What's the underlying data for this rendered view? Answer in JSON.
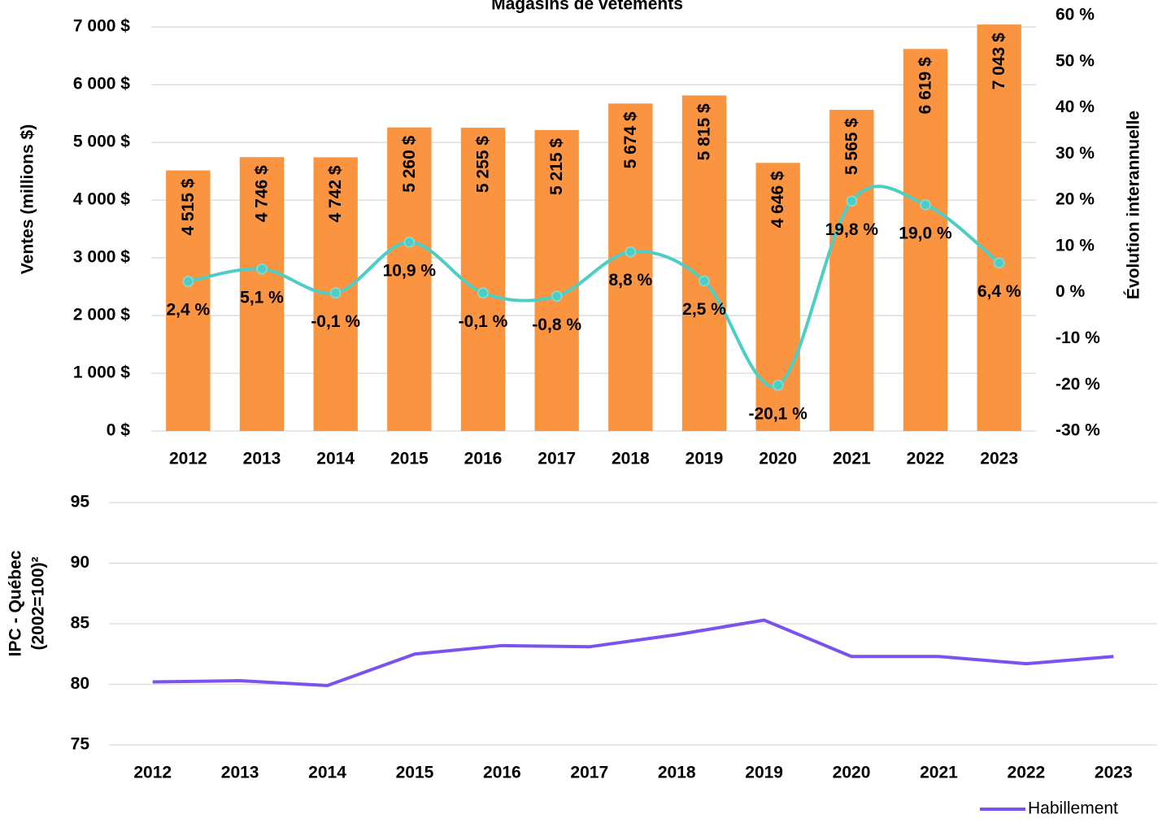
{
  "chart_data": [
    {
      "type": "bar",
      "title": "Magasins de vêtements",
      "y_label": "Ventes (millions $)",
      "y2_label": "Évolution interannuelle",
      "categories": [
        "2012",
        "2013",
        "2014",
        "2015",
        "2016",
        "2017",
        "2018",
        "2019",
        "2020",
        "2021",
        "2022",
        "2023"
      ],
      "series": [
        {
          "type": "bar",
          "color": "#fb9440",
          "values": [
            4515,
            4746,
            4742,
            5260,
            5255,
            5215,
            5674,
            5815,
            4646,
            5565,
            6619,
            7043
          ],
          "value_labels": [
            "4 515 $",
            "4 746 $",
            "4 742 $",
            "5 260 $",
            "5 255 $",
            "5 215 $",
            "5 674 $",
            "5 815 $",
            "4 646 $",
            "5 565 $",
            "6 619 $",
            "7 043 $"
          ]
        },
        {
          "type": "line",
          "axis": "y2",
          "color": "#4ecdc4",
          "smooth": true,
          "values": [
            2.4,
            5.1,
            -0.1,
            10.9,
            -0.1,
            -0.8,
            8.8,
            2.5,
            -20.1,
            19.8,
            19.0,
            6.4
          ],
          "value_labels": [
            "2,4 %",
            "5,1 %",
            "-0,1 %",
            "10,9 %",
            "-0,1 %",
            "-0,8 %",
            "8,8 %",
            "2,5 %",
            "-20,1 %",
            "19,8 %",
            "19,0 %",
            "6,4 %"
          ]
        }
      ],
      "ylim": [
        0,
        7200
      ],
      "yticks": [
        {
          "value": 0,
          "label": "0 $"
        },
        {
          "value": 1000,
          "label": "1 000 $"
        },
        {
          "value": 2000,
          "label": "2 000 $"
        },
        {
          "value": 3000,
          "label": "3 000 $"
        },
        {
          "value": 4000,
          "label": "4 000 $"
        },
        {
          "value": 5000,
          "label": "5 000 $"
        },
        {
          "value": 6000,
          "label": "6 000 $"
        },
        {
          "value": 7000,
          "label": "7 000 $"
        }
      ],
      "y2lim": [
        -30,
        60
      ],
      "y2ticks": [
        {
          "value": -30,
          "label": "-30 %"
        },
        {
          "value": -20,
          "label": "-20 %"
        },
        {
          "value": -10,
          "label": "-10 %"
        },
        {
          "value": 0,
          "label": "0 %"
        },
        {
          "value": 10,
          "label": "10 %"
        },
        {
          "value": 20,
          "label": "20 %"
        },
        {
          "value": 30,
          "label": "30 %"
        },
        {
          "value": 40,
          "label": "40 %"
        },
        {
          "value": 50,
          "label": "50 %"
        },
        {
          "value": 60,
          "label": "60 %"
        }
      ],
      "grid": true
    },
    {
      "type": "line",
      "y_label": [
        "IPC - Québec",
        "(2002=100)²"
      ],
      "categories": [
        "2012",
        "2013",
        "2014",
        "2015",
        "2016",
        "2017",
        "2018",
        "2019",
        "2020",
        "2021",
        "2022",
        "2023"
      ],
      "series": [
        {
          "name": "Habillement",
          "color": "#7b52ee",
          "values": [
            80.2,
            80.3,
            79.9,
            82.5,
            83.2,
            83.1,
            84.1,
            85.3,
            82.3,
            82.3,
            81.7,
            82.3
          ]
        }
      ],
      "ylim": [
        75,
        95
      ],
      "yticks": [
        75,
        80,
        85,
        90,
        95
      ],
      "grid": true,
      "legend": "lower right"
    }
  ]
}
